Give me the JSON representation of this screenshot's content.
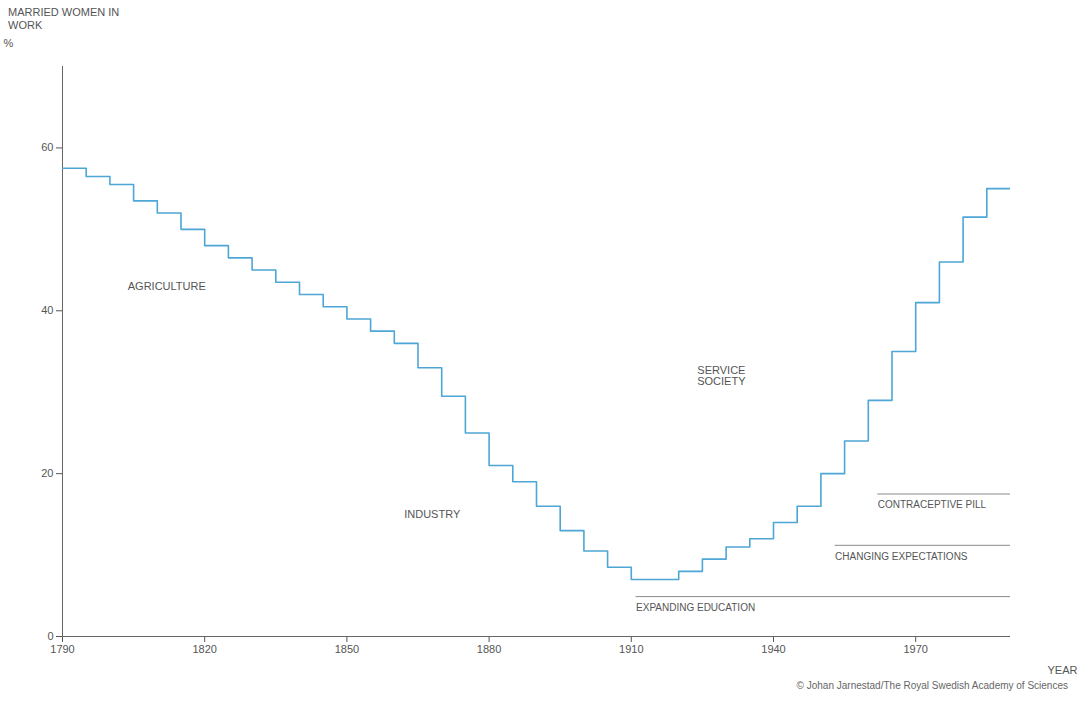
{
  "chart_data": {
    "type": "line",
    "title": "MARRIED WOMEN IN WORK",
    "ylabel": "%",
    "xlabel": "YEAR",
    "caption": "© Johan Jarnestad/The Royal Swedish Academy of Sciences",
    "x": [
      1790,
      1795,
      1800,
      1805,
      1810,
      1815,
      1820,
      1825,
      1830,
      1835,
      1840,
      1845,
      1850,
      1855,
      1860,
      1865,
      1870,
      1875,
      1880,
      1885,
      1890,
      1895,
      1900,
      1905,
      1910,
      1915,
      1920,
      1925,
      1930,
      1935,
      1940,
      1945,
      1950,
      1955,
      1960,
      1965,
      1970,
      1975,
      1980,
      1985,
      1990
    ],
    "values": [
      57.5,
      56.5,
      55.5,
      53.5,
      52,
      50,
      48,
      46.5,
      45,
      43.5,
      42,
      40.5,
      39,
      37.5,
      36,
      33,
      29.5,
      25,
      21,
      19,
      16,
      13,
      10.5,
      8.5,
      7,
      7,
      8,
      9.5,
      11,
      12,
      14,
      16,
      20,
      24,
      29,
      35,
      41,
      46,
      51.5,
      55,
      55
    ],
    "color": "#4da6d6",
    "line_style": "step",
    "xlim": [
      1790,
      1990
    ],
    "xticks": [
      1790,
      1820,
      1850,
      1880,
      1910,
      1940,
      1970
    ],
    "ylim": [
      0,
      70
    ],
    "yticks": [
      0,
      20,
      40,
      60
    ],
    "grid": false,
    "annotations": [
      {
        "text": "AGRICULTURE",
        "x": 1812,
        "y": 43
      },
      {
        "text": "INDUSTRY",
        "x": 1868,
        "y": 15
      },
      {
        "text": "SERVICE SOCIETY",
        "x": 1929,
        "y": 32
      }
    ],
    "periods": [
      {
        "label": "CONTRACEPTIVE PILL",
        "start": 1962,
        "end": 1990
      },
      {
        "label": "CHANGING EXPECTATIONS",
        "start": 1953,
        "end": 1990
      },
      {
        "label": "EXPANDING EDUCATION",
        "start": 1911,
        "end": 1990
      }
    ]
  }
}
